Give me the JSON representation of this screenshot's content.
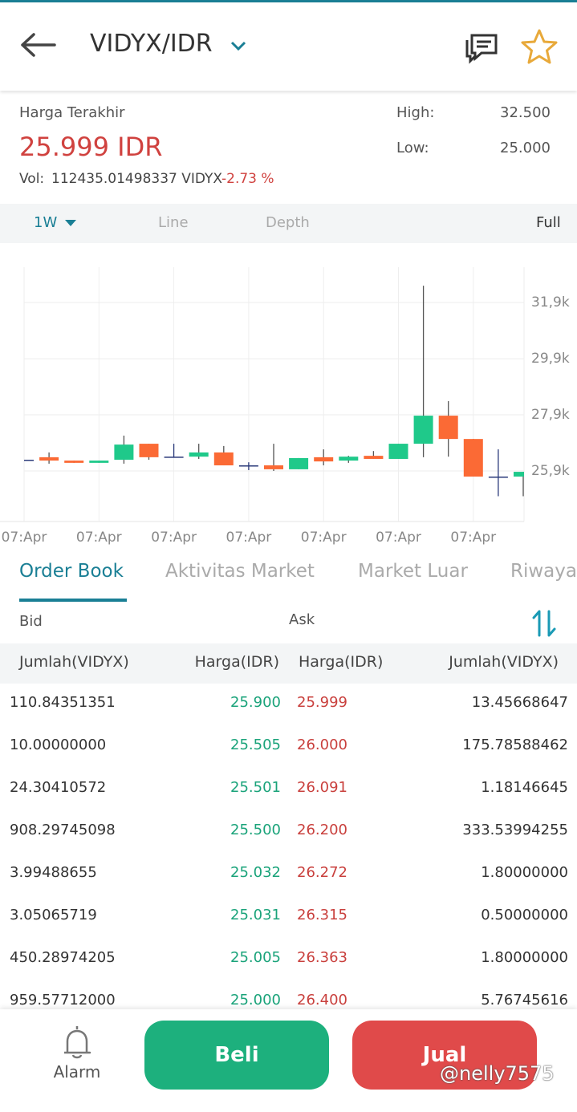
{
  "header": {
    "title": "VIDYX/IDR"
  },
  "price": {
    "label": "Harga Terakhir",
    "last": "25.999 IDR",
    "vol_label": "Vol:",
    "volume": "112435.01498337 VIDYX",
    "change": "-2.73 %",
    "high_label": "High:",
    "high": "32.500",
    "low_label": "Low:",
    "low": "25.000"
  },
  "chart_controls": {
    "interval": "1W",
    "line": "Line",
    "depth": "Depth",
    "full": "Full"
  },
  "chart": {
    "type": "candlestick",
    "grid": true,
    "colors": {
      "up": "#1fc98a",
      "down": "#fb6a35",
      "flat": "#2b3a7a"
    },
    "xlabels": [
      "07:Apr",
      "07:Apr",
      "07:Apr",
      "07:Apr",
      "07:Apr",
      "07:Apr",
      "07:Apr"
    ],
    "ylim": [
      24100,
      33160
    ],
    "yticks": [
      {
        "value": 31900,
        "label": "31,9k"
      },
      {
        "value": 29900,
        "label": "29,9k"
      },
      {
        "value": 27900,
        "label": "27,9k"
      },
      {
        "value": 25900,
        "label": "25,9k"
      }
    ],
    "candles": [
      {
        "open": 26300,
        "high": 26300,
        "low": 26300,
        "close": 26300
      },
      {
        "open": 26390,
        "high": 26560,
        "low": 26160,
        "close": 26270
      },
      {
        "open": 26270,
        "high": 26270,
        "low": 26190,
        "close": 26190
      },
      {
        "open": 26190,
        "high": 26270,
        "low": 26190,
        "close": 26270
      },
      {
        "open": 26300,
        "high": 27160,
        "low": 26160,
        "close": 26840
      },
      {
        "open": 26870,
        "high": 26870,
        "low": 26300,
        "close": 26390
      },
      {
        "open": 26410,
        "high": 26870,
        "low": 26390,
        "close": 26410
      },
      {
        "open": 26410,
        "high": 26870,
        "low": 26330,
        "close": 26560
      },
      {
        "open": 26560,
        "high": 26790,
        "low": 26100,
        "close": 26100
      },
      {
        "open": 26100,
        "high": 26210,
        "low": 25930,
        "close": 26100
      },
      {
        "open": 26100,
        "high": 26870,
        "low": 25900,
        "close": 25960
      },
      {
        "open": 25960,
        "high": 26360,
        "low": 25960,
        "close": 26360
      },
      {
        "open": 26390,
        "high": 26670,
        "low": 26100,
        "close": 26240
      },
      {
        "open": 26270,
        "high": 26440,
        "low": 26190,
        "close": 26410
      },
      {
        "open": 26440,
        "high": 26610,
        "low": 26330,
        "close": 26330
      },
      {
        "open": 26330,
        "high": 26870,
        "low": 26330,
        "close": 26870
      },
      {
        "open": 26870,
        "high": 32500,
        "low": 26390,
        "close": 27870
      },
      {
        "open": 27870,
        "high": 28390,
        "low": 26410,
        "close": 27040
      },
      {
        "open": 27040,
        "high": 27040,
        "low": 25700,
        "close": 25700
      },
      {
        "open": 25700,
        "high": 26670,
        "low": 25000,
        "close": 25700
      },
      {
        "open": 25700,
        "high": 25870,
        "low": 25000,
        "close": 25870
      }
    ]
  },
  "tabs": [
    "Order Book",
    "Aktivitas Market",
    "Market Luar",
    "Riwaya"
  ],
  "order_book": {
    "bid": "Bid",
    "ask": "Ask",
    "columns": [
      "Jumlah(VIDYX)",
      "Harga(IDR)",
      "Harga(IDR)",
      "Jumlah(VIDYX)"
    ],
    "rows": [
      [
        "110.84351351",
        "25.900",
        "25.999",
        "13.45668647"
      ],
      [
        "10.00000000",
        "25.505",
        "26.000",
        "175.78588462"
      ],
      [
        "24.30410572",
        "25.501",
        "26.091",
        "1.18146645"
      ],
      [
        "908.29745098",
        "25.500",
        "26.200",
        "333.53994255"
      ],
      [
        "3.99488655",
        "25.032",
        "26.272",
        "1.80000000"
      ],
      [
        "3.05065719",
        "25.031",
        "26.315",
        "0.50000000"
      ],
      [
        "450.28974205",
        "25.005",
        "26.363",
        "1.80000000"
      ],
      [
        "959.57712000",
        "25.000",
        "26.400",
        "5.76745616"
      ]
    ]
  },
  "bottom": {
    "alarm": "Alarm",
    "buy": "Beli",
    "sell": "Jual"
  },
  "watermark": "@nelly7575"
}
